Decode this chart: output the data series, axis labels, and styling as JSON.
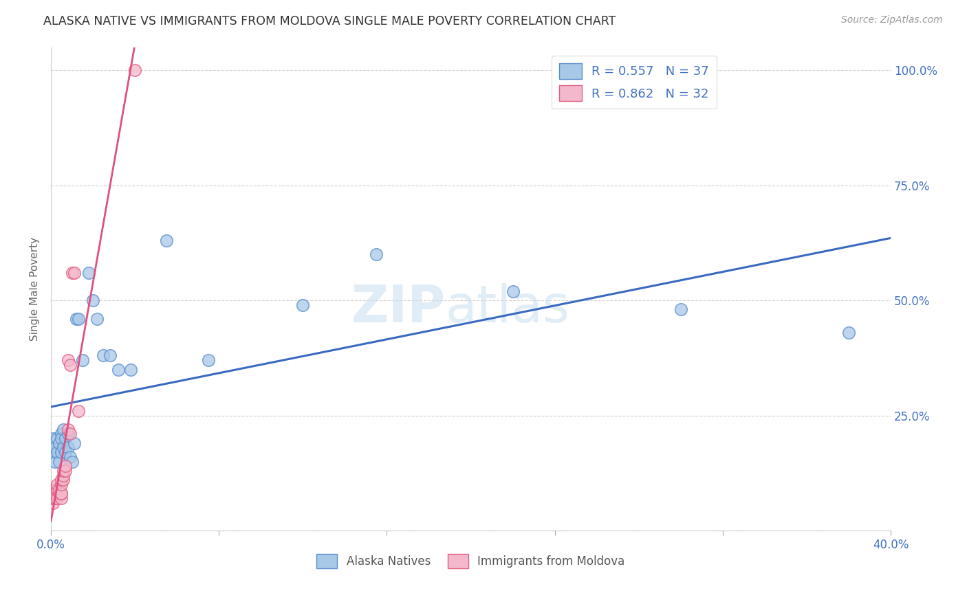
{
  "title": "ALASKA NATIVE VS IMMIGRANTS FROM MOLDOVA SINGLE MALE POVERTY CORRELATION CHART",
  "source": "Source: ZipAtlas.com",
  "ylabel": "Single Male Poverty",
  "xlim": [
    0.0,
    0.4
  ],
  "ylim": [
    0.0,
    1.05
  ],
  "alaska_native_color": "#a8c8e8",
  "alaska_native_edge": "#5b8fcc",
  "moldova_color": "#f4b8cc",
  "moldova_edge": "#e06080",
  "alaska_line_color": "#3a6abf",
  "moldova_line_color": "#e05080",
  "legend_R1": "R = 0.557",
  "legend_N1": "N = 37",
  "legend_R2": "R = 0.862",
  "legend_N2": "N = 32",
  "alaska_natives_x": [
    0.001,
    0.001,
    0.002,
    0.002,
    0.003,
    0.003,
    0.004,
    0.004,
    0.005,
    0.005,
    0.005,
    0.006,
    0.006,
    0.007,
    0.007,
    0.008,
    0.008,
    0.009,
    0.01,
    0.011,
    0.012,
    0.013,
    0.015,
    0.018,
    0.02,
    0.022,
    0.025,
    0.028,
    0.032,
    0.038,
    0.055,
    0.075,
    0.12,
    0.155,
    0.22,
    0.3,
    0.38
  ],
  "alaska_natives_y": [
    0.2,
    0.17,
    0.18,
    0.15,
    0.2,
    0.17,
    0.19,
    0.15,
    0.21,
    0.2,
    0.17,
    0.22,
    0.18,
    0.2,
    0.17,
    0.21,
    0.18,
    0.16,
    0.15,
    0.19,
    0.46,
    0.46,
    0.37,
    0.56,
    0.5,
    0.46,
    0.38,
    0.38,
    0.35,
    0.35,
    0.63,
    0.37,
    0.49,
    0.6,
    0.52,
    0.48,
    0.43
  ],
  "moldova_x": [
    0.001,
    0.001,
    0.001,
    0.001,
    0.001,
    0.002,
    0.002,
    0.002,
    0.003,
    0.003,
    0.003,
    0.003,
    0.004,
    0.004,
    0.005,
    0.005,
    0.005,
    0.005,
    0.005,
    0.006,
    0.006,
    0.006,
    0.007,
    0.007,
    0.008,
    0.008,
    0.009,
    0.009,
    0.01,
    0.011,
    0.013,
    0.04
  ],
  "moldova_y": [
    0.06,
    0.07,
    0.07,
    0.08,
    0.08,
    0.07,
    0.08,
    0.09,
    0.07,
    0.09,
    0.09,
    0.1,
    0.08,
    0.09,
    0.07,
    0.08,
    0.08,
    0.1,
    0.11,
    0.11,
    0.12,
    0.13,
    0.13,
    0.14,
    0.22,
    0.37,
    0.21,
    0.36,
    0.56,
    0.56,
    0.26,
    1.0
  ],
  "watermark_zip": "ZIP",
  "watermark_atlas": "atlas",
  "background_color": "#ffffff",
  "grid_color": "#cccccc"
}
